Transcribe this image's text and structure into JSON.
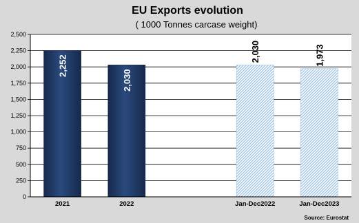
{
  "chart_data": {
    "type": "bar",
    "title": "EU Exports evolution",
    "subtitle": "( 1000 Tonnes carcase weight)",
    "categories": [
      "2021",
      "2022",
      "",
      "Jan-Dec2022",
      "Jan-Dec2023"
    ],
    "values": [
      2252,
      2030,
      null,
      2030,
      1973
    ],
    "value_labels": [
      "2,252",
      "2,030",
      "",
      "2,030",
      "1,973"
    ],
    "bar_styles": [
      "solid",
      "solid",
      "none",
      "hatched",
      "hatched"
    ],
    "ylim": [
      0,
      2500
    ],
    "yticks": [
      0,
      250,
      500,
      750,
      1000,
      1250,
      1500,
      1750,
      2000,
      2250,
      2500
    ],
    "ytick_labels": [
      "0",
      "250",
      "500",
      "750",
      "1,000",
      "1,250",
      "1,500",
      "1,750",
      "2,000",
      "2,250",
      "2,500"
    ],
    "grid": true,
    "source": "Source: Eurostat",
    "colors": {
      "background": "#d9d9d9",
      "plot_area": "#ffffff",
      "grid": "#000000",
      "bar_solid": "#1f3864",
      "bar_hatched_fg": "#9dc3e6",
      "bar_hatched_bg": "#ffffff"
    }
  }
}
